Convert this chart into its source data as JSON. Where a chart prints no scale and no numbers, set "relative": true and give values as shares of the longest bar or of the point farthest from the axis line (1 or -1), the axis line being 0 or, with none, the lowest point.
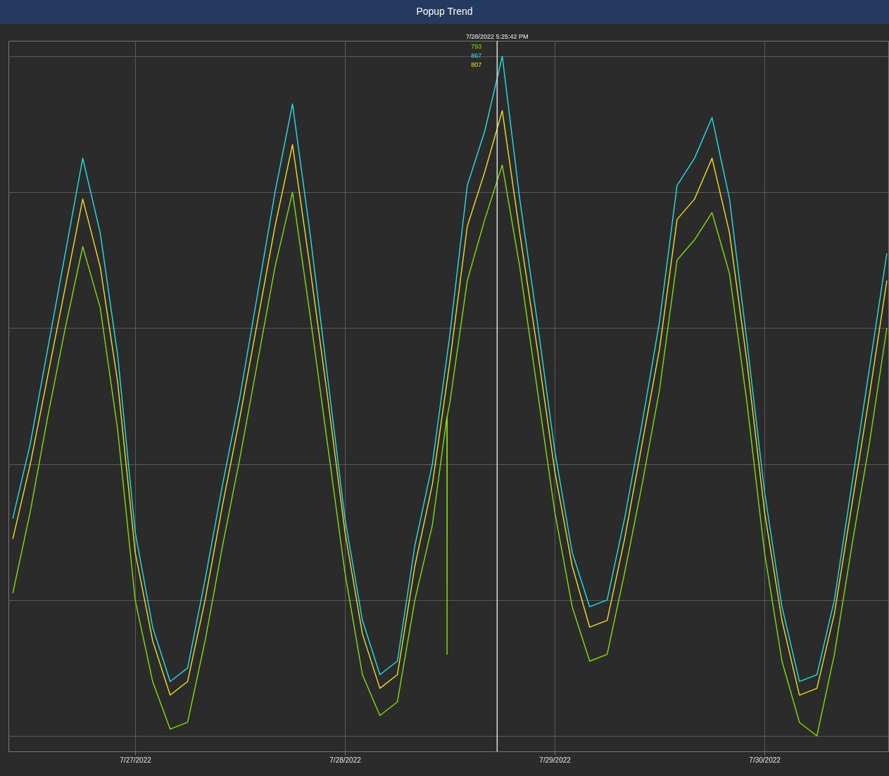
{
  "chart_data": {
    "type": "line",
    "title": "Popup Trend",
    "relative": true,
    "grid": true,
    "line_style": "solid",
    "xlim": [
      "2022-07-26T09:30",
      "2022-07-30T14:10"
    ],
    "xticks": [
      {
        "value": "2022-07-27",
        "label": "7/27/2022"
      },
      {
        "value": "2022-07-28",
        "label": "7/28/2022"
      },
      {
        "value": "2022-07-29",
        "label": "7/29/2022"
      },
      {
        "value": "2022-07-30",
        "label": "7/30/2022"
      }
    ],
    "x": [
      "2022-07-26T10:00",
      "2022-07-26T12:00",
      "2022-07-26T14:00",
      "2022-07-26T16:00",
      "2022-07-26T18:00",
      "2022-07-26T20:00",
      "2022-07-26T22:00",
      "2022-07-27T00:00",
      "2022-07-27T02:00",
      "2022-07-27T04:00",
      "2022-07-27T06:00",
      "2022-07-27T08:00",
      "2022-07-27T10:00",
      "2022-07-27T12:00",
      "2022-07-27T14:00",
      "2022-07-27T16:00",
      "2022-07-27T18:00",
      "2022-07-27T20:00",
      "2022-07-27T22:00",
      "2022-07-28T00:00",
      "2022-07-28T02:00",
      "2022-07-28T04:00",
      "2022-07-28T06:00",
      "2022-07-28T08:00",
      "2022-07-28T10:00",
      "2022-07-28T12:00",
      "2022-07-28T14:00",
      "2022-07-28T16:00",
      "2022-07-28T18:00",
      "2022-07-28T20:00",
      "2022-07-28T22:00",
      "2022-07-29T00:00",
      "2022-07-29T02:00",
      "2022-07-29T04:00",
      "2022-07-29T06:00",
      "2022-07-29T08:00",
      "2022-07-29T10:00",
      "2022-07-29T12:00",
      "2022-07-29T14:00",
      "2022-07-29T16:00",
      "2022-07-29T18:00",
      "2022-07-29T20:00",
      "2022-07-29T22:00",
      "2022-07-30T00:00",
      "2022-07-30T02:00",
      "2022-07-30T04:00",
      "2022-07-30T06:00",
      "2022-07-30T08:00",
      "2022-07-30T10:00",
      "2022-07-30T12:00",
      "2022-07-30T14:00"
    ],
    "series": [
      {
        "color": "#80e000",
        "x": [
          "2022-07-26T10:00",
          "2022-07-26T12:00",
          "2022-07-26T14:00",
          "2022-07-26T16:00",
          "2022-07-26T18:00",
          "2022-07-26T20:00",
          "2022-07-26T22:00",
          "2022-07-27T00:00",
          "2022-07-27T02:00",
          "2022-07-27T04:00",
          "2022-07-27T06:00",
          "2022-07-27T08:00",
          "2022-07-27T10:00",
          "2022-07-27T12:00",
          "2022-07-27T14:00",
          "2022-07-27T16:00",
          "2022-07-27T18:00",
          "2022-07-27T20:00",
          "2022-07-27T22:00",
          "2022-07-28T00:00",
          "2022-07-28T02:00",
          "2022-07-28T04:00",
          "2022-07-28T06:00",
          "2022-07-28T08:00",
          "2022-07-28T10:00",
          "2022-07-28T11:40",
          "2022-07-28T11:41",
          "2022-07-28T11:42",
          "2022-07-28T12:00",
          "2022-07-28T14:00",
          "2022-07-28T16:00",
          "2022-07-28T18:00",
          "2022-07-28T20:00",
          "2022-07-28T22:00",
          "2022-07-29T00:00",
          "2022-07-29T02:00",
          "2022-07-29T04:00",
          "2022-07-29T06:00",
          "2022-07-29T08:00",
          "2022-07-29T10:00",
          "2022-07-29T12:00",
          "2022-07-29T14:00",
          "2022-07-29T16:00",
          "2022-07-29T18:00",
          "2022-07-29T20:00",
          "2022-07-29T22:00",
          "2022-07-30T00:00",
          "2022-07-30T02:00",
          "2022-07-30T04:00",
          "2022-07-30T06:00",
          "2022-07-30T08:00",
          "2022-07-30T10:00",
          "2022-07-30T12:00",
          "2022-07-30T14:00"
        ],
        "values": [
          0.21,
          0.33,
          0.47,
          0.6,
          0.72,
          0.63,
          0.45,
          0.2,
          0.08,
          0.01,
          0.02,
          0.14,
          0.28,
          0.41,
          0.55,
          0.69,
          0.8,
          0.62,
          0.43,
          0.24,
          0.09,
          0.03,
          0.05,
          0.2,
          0.31,
          0.47,
          0.12,
          0.47,
          0.49,
          0.67,
          0.76,
          0.84,
          0.69,
          0.51,
          0.33,
          0.19,
          0.11,
          0.12,
          0.24,
          0.37,
          0.51,
          0.7,
          0.73,
          0.77,
          0.68,
          0.49,
          0.27,
          0.11,
          0.02,
          0.0,
          0.12,
          0.28,
          0.43,
          0.6
        ]
      },
      {
        "color": "#1fe3e8",
        "values": [
          0.32,
          0.43,
          0.57,
          0.71,
          0.85,
          0.74,
          0.56,
          0.3,
          0.16,
          0.08,
          0.1,
          0.23,
          0.37,
          0.5,
          0.65,
          0.8,
          0.93,
          0.74,
          0.53,
          0.32,
          0.17,
          0.09,
          0.11,
          0.28,
          0.4,
          0.59,
          0.81,
          0.89,
          1.0,
          0.79,
          0.61,
          0.42,
          0.27,
          0.19,
          0.2,
          0.32,
          0.46,
          0.61,
          0.81,
          0.85,
          0.91,
          0.79,
          0.58,
          0.36,
          0.19,
          0.08,
          0.09,
          0.2,
          0.37,
          0.54,
          0.71
        ]
      },
      {
        "color": "#f2e017",
        "values": [
          0.29,
          0.4,
          0.53,
          0.66,
          0.79,
          0.69,
          0.52,
          0.27,
          0.14,
          0.06,
          0.08,
          0.2,
          0.34,
          0.47,
          0.61,
          0.75,
          0.87,
          0.69,
          0.5,
          0.3,
          0.15,
          0.07,
          0.09,
          0.25,
          0.37,
          0.55,
          0.75,
          0.83,
          0.92,
          0.74,
          0.57,
          0.39,
          0.25,
          0.16,
          0.17,
          0.29,
          0.43,
          0.57,
          0.76,
          0.79,
          0.85,
          0.74,
          0.55,
          0.33,
          0.17,
          0.06,
          0.07,
          0.18,
          0.34,
          0.5,
          0.67
        ]
      }
    ],
    "ref_lines": [
      {
        "axis": "x",
        "value": "2022-07-28T17:25",
        "label": "7/28/2022 5:25:42 PM",
        "color": "#dddddd"
      }
    ],
    "annotations": [
      "793",
      "867",
      "807"
    ]
  }
}
